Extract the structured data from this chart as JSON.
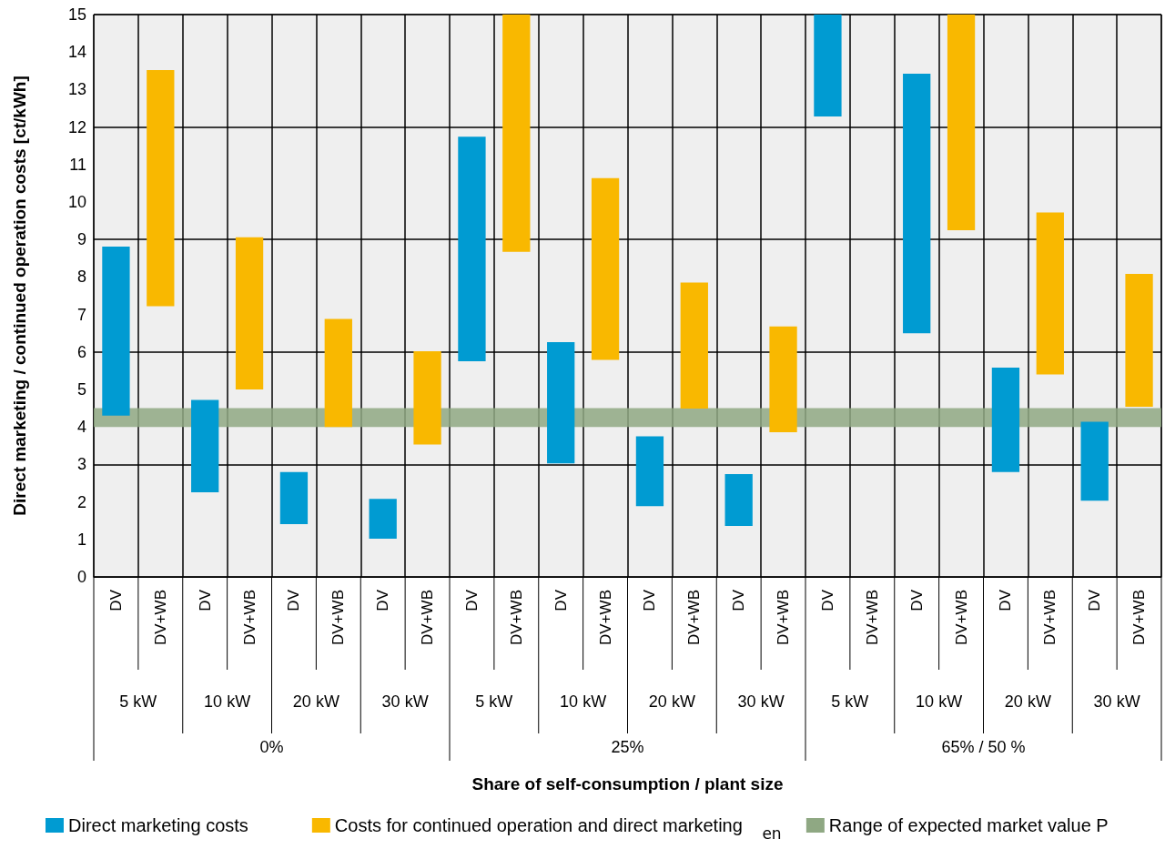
{
  "chart_data": {
    "type": "bar",
    "ylabel": "Direct marketing / continued operation costs [ct/kWh]",
    "categories": [
      "DV",
      "DV+WB",
      "DV",
      "DV+WB",
      "DV",
      "DV+WB",
      "DV",
      "DV+WB",
      "DV",
      "DV+WB",
      "DV",
      "DV+WB",
      "DV",
      "DV+WB",
      "DV",
      "DV+WB",
      "DV",
      "DV+WB",
      "DV",
      "DV+WB",
      "DV",
      "DV+WB",
      "DV",
      "DV+WB"
    ],
    "series": [
      {
        "name": "Direct marketing costs",
        "color": "#009bd2",
        "base": [
          4.3,
          null,
          2.26,
          null,
          1.41,
          null,
          1.02,
          null,
          5.75,
          null,
          3.03,
          null,
          1.89,
          null,
          1.36,
          null,
          12.28,
          null,
          6.5,
          null,
          2.8,
          null,
          2.03,
          null
        ],
        "values": [
          4.51,
          null,
          2.46,
          null,
          1.39,
          null,
          1.06,
          null,
          5.99,
          null,
          3.23,
          null,
          1.86,
          null,
          1.38,
          null,
          2.72,
          null,
          6.92,
          null,
          2.78,
          null,
          2.11,
          null
        ]
      },
      {
        "name": "Costs for continued operation and direct marketing",
        "color": "#f9b800",
        "base": [
          null,
          7.22,
          null,
          5.0,
          null,
          4.0,
          null,
          3.53,
          null,
          8.67,
          null,
          5.79,
          null,
          4.49,
          null,
          3.86,
          null,
          null,
          null,
          9.25,
          null,
          5.4,
          null,
          4.54
        ],
        "values": [
          null,
          6.3,
          null,
          4.06,
          null,
          2.88,
          null,
          2.49,
          null,
          6.33,
          null,
          4.85,
          null,
          3.36,
          null,
          2.82,
          null,
          null,
          null,
          5.75,
          null,
          4.32,
          null,
          3.54
        ]
      }
    ],
    "bands": [
      {
        "axis": "y",
        "from": 4,
        "to": 4.5,
        "label": "Range of expected market value P",
        "color": "#8fa883"
      }
    ],
    "annotations": [
      "5 kW",
      "10 kW",
      "20 kW",
      "30 kW",
      "5 kW",
      "10 kW",
      "20 kW",
      "30 kW",
      "5 kW",
      "10 kW",
      "20 kW",
      "30 kW",
      "0%",
      "25%",
      "65% / 50 %",
      "Share of self-consumption / plant size",
      "en"
    ],
    "ylim": [
      0,
      15
    ],
    "yticks": [
      0,
      1,
      2,
      3,
      4,
      5,
      6,
      7,
      8,
      9,
      10,
      11,
      12,
      13,
      14,
      15
    ],
    "grid": true,
    "legend": "bottom"
  }
}
